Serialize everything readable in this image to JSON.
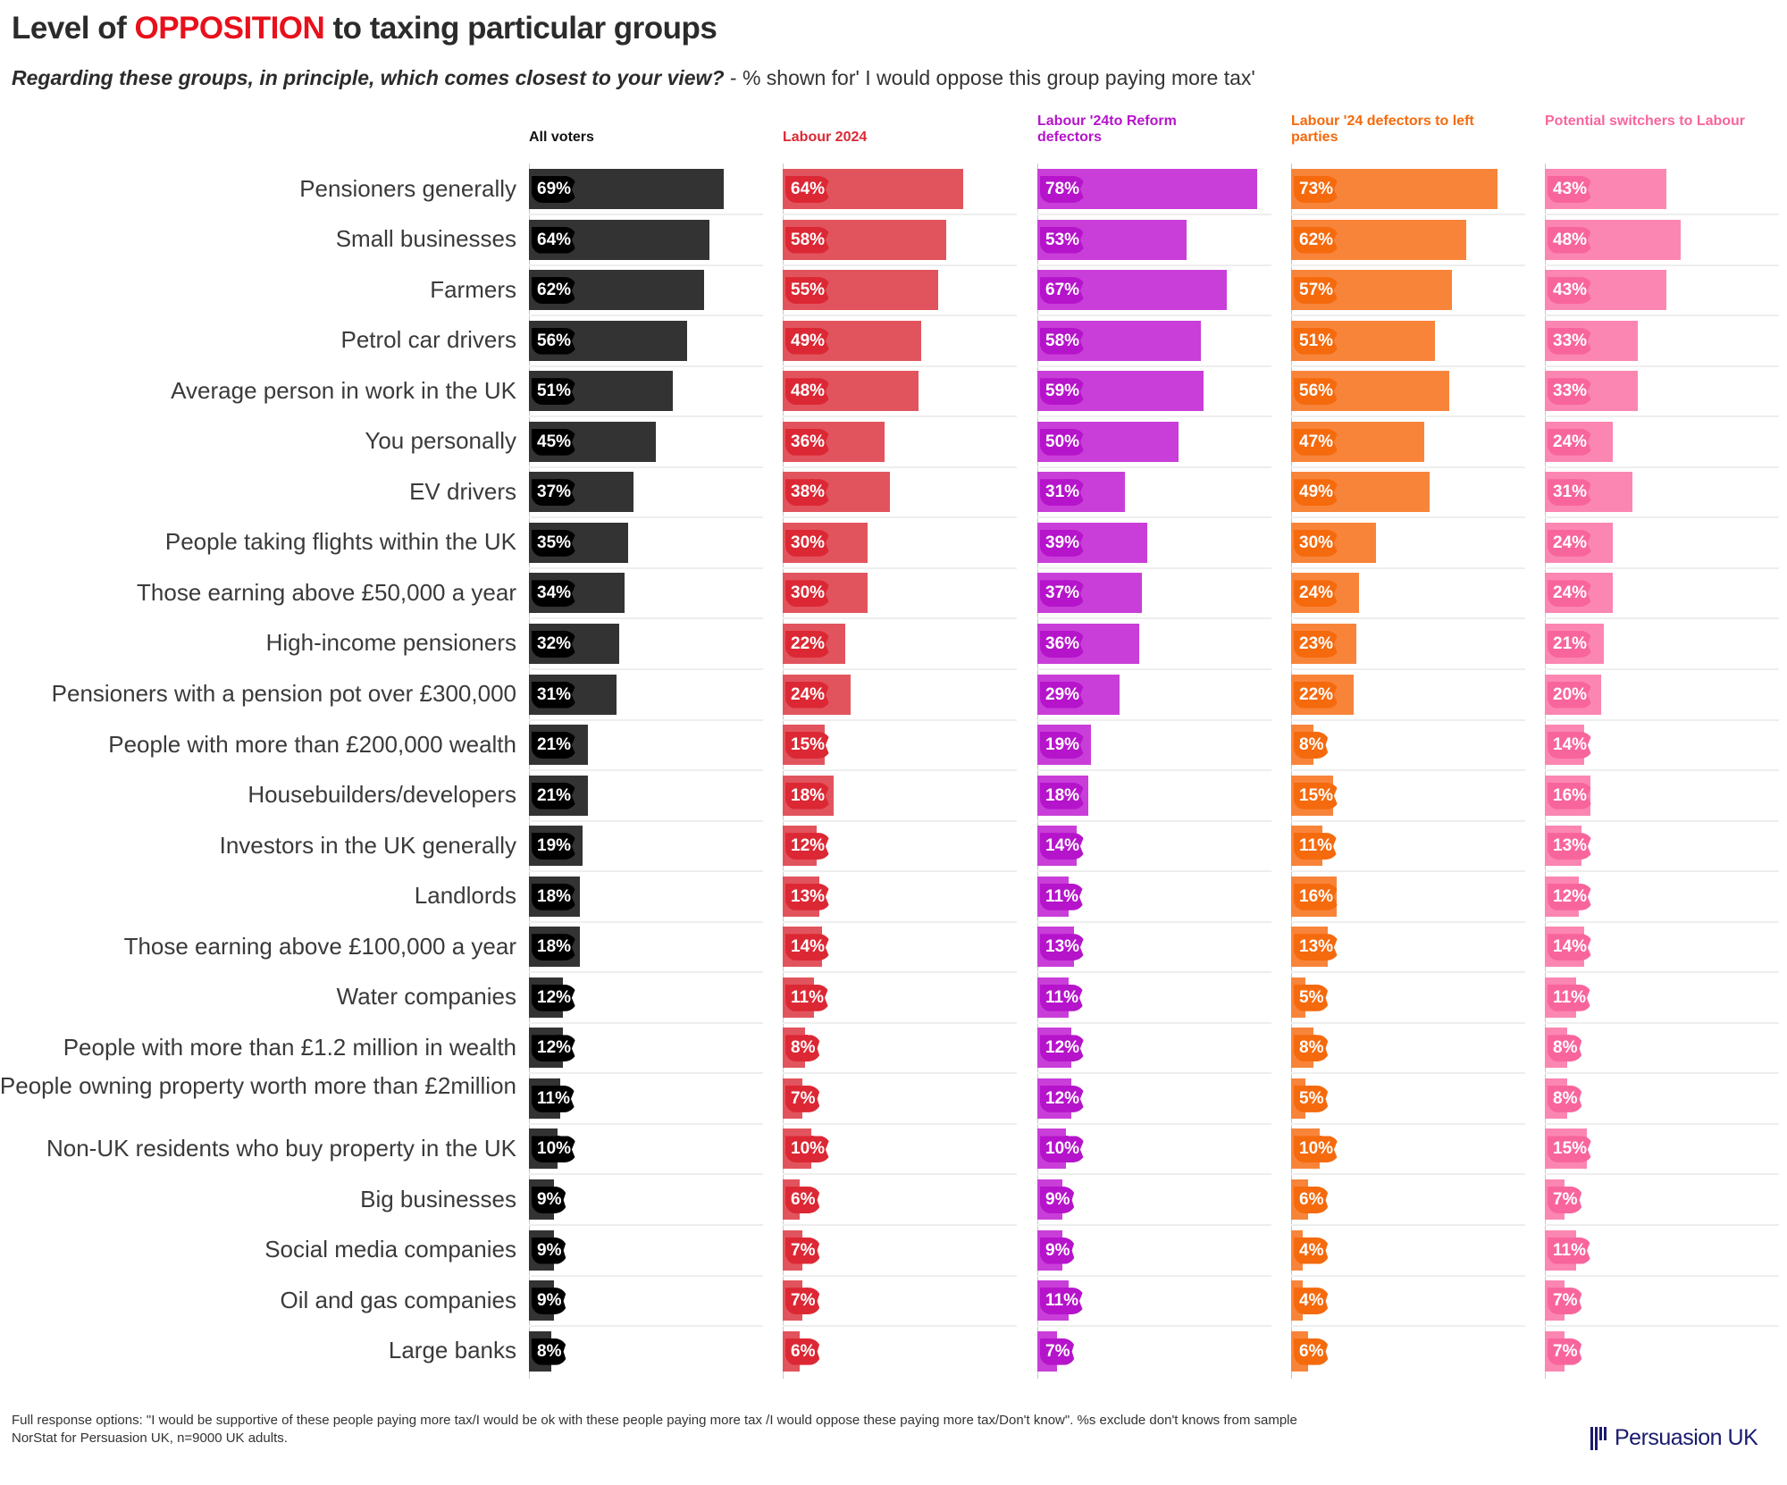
{
  "header": {
    "title_prefix": "Level of ",
    "title_highlight": "OPPOSITION",
    "title_suffix": " to taxing particular groups",
    "subtitle_question": "Regarding these groups, in principle, which comes closest to your view?",
    "subtitle_rest": " - % shown for' I would oppose this group paying more tax'"
  },
  "footer": {
    "line1": "Full response options: \"I would be supportive of these people paying more tax/I would be ok with these people paying more tax /I would oppose these paying more tax/Don't know\". %s exclude don't knows from sample",
    "line2": "NorStat for Persuasion UK, n=9000 UK adults."
  },
  "logo": {
    "text": "Persuasion UK",
    "color": "#1a1a6e"
  },
  "chart_data": {
    "type": "bar",
    "orientation": "horizontal",
    "title": "Level of OPPOSITION to taxing particular groups",
    "subtitle": "Regarding these groups, in principle, which comes closest to your view? - % shown for' I would oppose this group paying more tax'",
    "xlabel": "",
    "ylabel": "",
    "xlim": [
      0,
      100
    ],
    "unit": "%",
    "grid": true,
    "categories": [
      "Pensioners generally",
      "Small businesses",
      "Farmers",
      "Petrol car drivers",
      "Average person in work in the UK",
      "You personally",
      "EV drivers",
      "People taking flights within the UK",
      "Those earning above £50,000 a year",
      "High-income pensioners",
      "Pensioners with a pension pot over £300,000",
      "People with more than £200,000 wealth",
      "Housebuilders/developers",
      "Investors in the UK generally",
      "Landlords",
      "Those earning above £100,000 a year",
      "Water companies",
      "People with more than £1.2 million in wealth",
      "People owning property worth more than £2million",
      "Non-UK residents who buy property in the UK",
      "Big businesses",
      "Social media companies",
      "Oil and gas companies",
      "Large banks"
    ],
    "series": [
      {
        "name": "All voters",
        "color": "#333333",
        "badge_color": "#000000",
        "values": [
          69,
          64,
          62,
          56,
          51,
          45,
          37,
          35,
          34,
          32,
          31,
          21,
          21,
          19,
          18,
          18,
          12,
          12,
          11,
          10,
          9,
          9,
          9,
          8
        ]
      },
      {
        "name": "Labour 2024",
        "color": "#e2545d",
        "badge_color": "#dc2834",
        "values": [
          64,
          58,
          55,
          49,
          48,
          36,
          38,
          30,
          30,
          22,
          24,
          15,
          18,
          12,
          13,
          14,
          11,
          8,
          7,
          10,
          6,
          7,
          7,
          6
        ]
      },
      {
        "name": "Labour '24to Reform defectors",
        "color": "#c93ed8",
        "badge_color": "#b514cb",
        "values": [
          78,
          53,
          67,
          58,
          59,
          50,
          31,
          39,
          37,
          36,
          29,
          19,
          18,
          14,
          11,
          13,
          11,
          12,
          12,
          10,
          9,
          9,
          11,
          7
        ]
      },
      {
        "name": "Labour '24 defectors to left parties",
        "color": "#f8843a",
        "badge_color": "#f56a0d",
        "values": [
          73,
          62,
          57,
          51,
          56,
          47,
          49,
          30,
          24,
          23,
          22,
          8,
          15,
          11,
          16,
          13,
          5,
          8,
          5,
          10,
          6,
          4,
          4,
          6
        ]
      },
      {
        "name": "Potential switchers to Labour",
        "color": "#fb86b2",
        "badge_color": "#f8659c",
        "values": [
          43,
          48,
          43,
          33,
          33,
          24,
          31,
          24,
          24,
          21,
          20,
          14,
          16,
          13,
          12,
          14,
          11,
          8,
          8,
          15,
          7,
          11,
          7,
          7
        ]
      }
    ]
  }
}
